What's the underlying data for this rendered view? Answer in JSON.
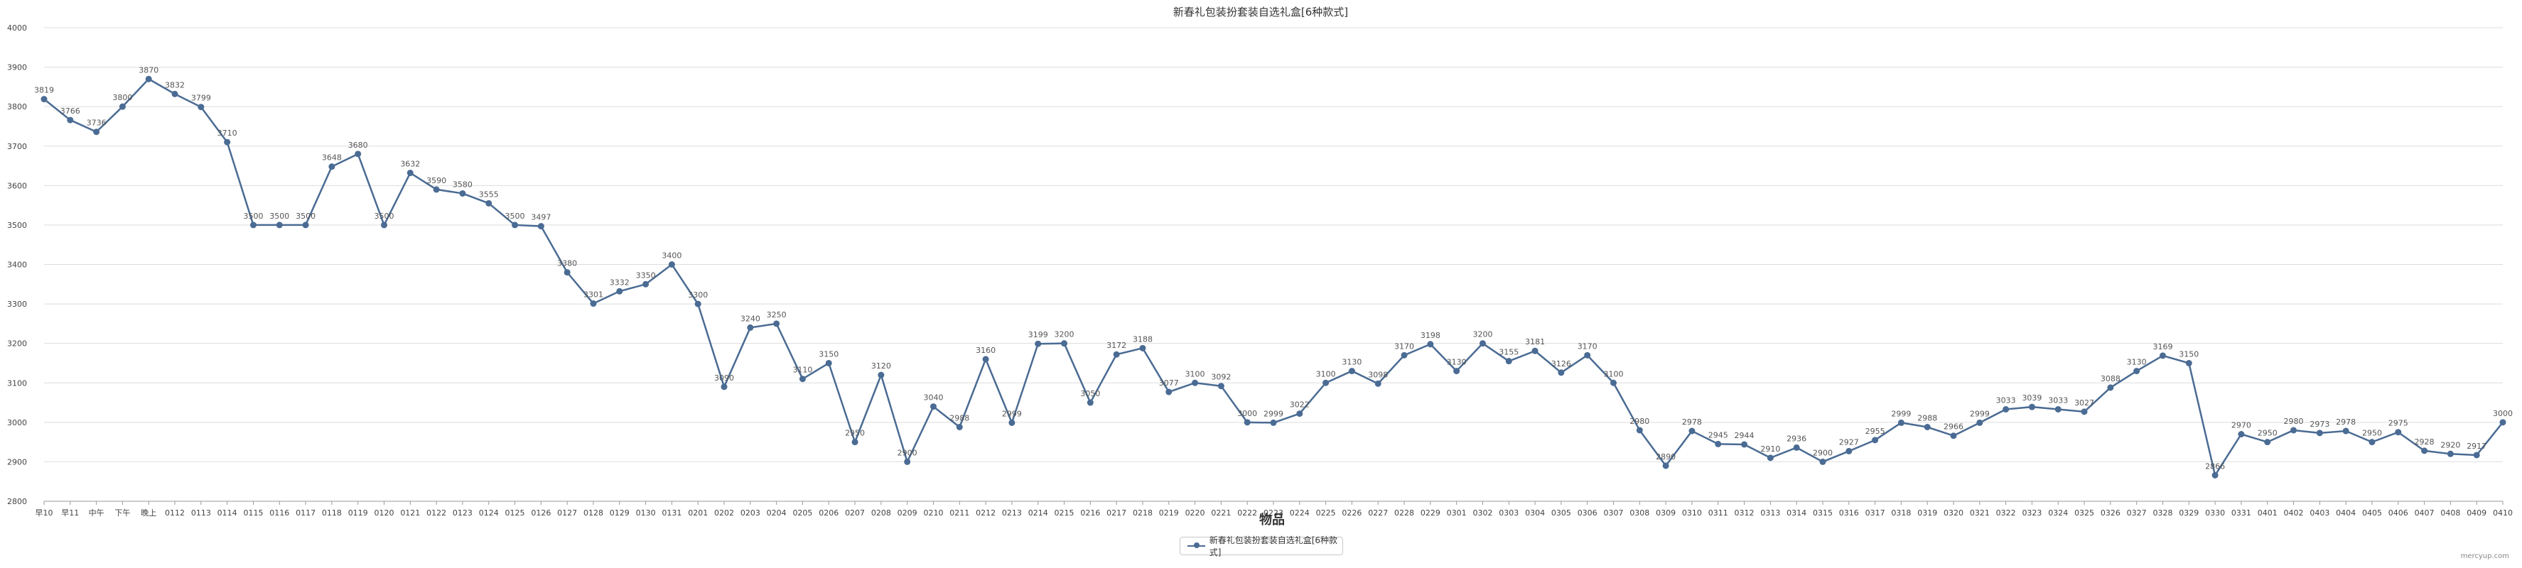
{
  "chart_data": {
    "type": "line",
    "title": "新春礼包装扮套装自选礼盒[6种款式]",
    "xlabel": "物品",
    "ylabel": "",
    "ylim": [
      2800,
      4000
    ],
    "yticks": [
      2800,
      2900,
      3000,
      3100,
      3200,
      3300,
      3400,
      3500,
      3600,
      3700,
      3800,
      3900,
      4000
    ],
    "grid": true,
    "legend_position": "bottom-center",
    "categories": [
      "早10",
      "早11",
      "中午",
      "下午",
      "晚上",
      "0112",
      "0113",
      "0114",
      "0115",
      "0116",
      "0117",
      "0118",
      "0119",
      "0120",
      "0121",
      "0122",
      "0123",
      "0124",
      "0125",
      "0126",
      "0127",
      "0128",
      "0129",
      "0130",
      "0131",
      "0201",
      "0202",
      "0203",
      "0204",
      "0205",
      "0206",
      "0207",
      "0208",
      "0209",
      "0210",
      "0211",
      "0212",
      "0213",
      "0214",
      "0215",
      "0216",
      "0217",
      "0218",
      "0219",
      "0220",
      "0221",
      "0222",
      "0223",
      "0224",
      "0225",
      "0226",
      "0227",
      "0228",
      "0229",
      "0301",
      "0302",
      "0303",
      "0304",
      "0305",
      "0306",
      "0307",
      "0308",
      "0309",
      "0310",
      "0311",
      "0312",
      "0313",
      "0314",
      "0315",
      "0316",
      "0317",
      "0318",
      "0319",
      "0320",
      "0321",
      "0322",
      "0323",
      "0324",
      "0325",
      "0326",
      "0327",
      "0328",
      "0329",
      "0330",
      "0331",
      "0401",
      "0402",
      "0403",
      "0404",
      "0405",
      "0406",
      "0407",
      "0408",
      "0409",
      "0410"
    ],
    "series": [
      {
        "name": "新春礼包装扮套装自选礼盒[6种款式]",
        "color": "#4a6b93",
        "values": [
          3819,
          3766,
          3736,
          3800,
          3870,
          3832,
          3799,
          3710,
          3500,
          3500,
          3500,
          3648,
          3680,
          3500,
          3632,
          3590,
          3580,
          3555,
          3500,
          3497,
          3380,
          3301,
          3332,
          3350,
          3400,
          3300,
          3090,
          3240,
          3250,
          3110,
          3150,
          2950,
          3120,
          2900,
          3040,
          2988,
          3160,
          2999,
          3199,
          3200,
          3050,
          3172,
          3188,
          3077,
          3100,
          3092,
          3000,
          2999,
          3022,
          3100,
          3130,
          3098,
          3170,
          3198,
          3130,
          3200,
          3155,
          3181,
          3126,
          3170,
          3100,
          2980,
          2890,
          2978,
          2945,
          2944,
          2910,
          2936,
          2900,
          2927,
          2955,
          2999,
          2988,
          2966,
          2999,
          3033,
          3039,
          3033,
          3027,
          3088,
          3130,
          3169,
          3150,
          2866,
          2970,
          2950,
          2980,
          2973,
          2978,
          2950,
          2975,
          2928,
          2920,
          2917,
          3000
        ]
      }
    ]
  },
  "footer": {
    "watermark": "mercyup.com"
  }
}
